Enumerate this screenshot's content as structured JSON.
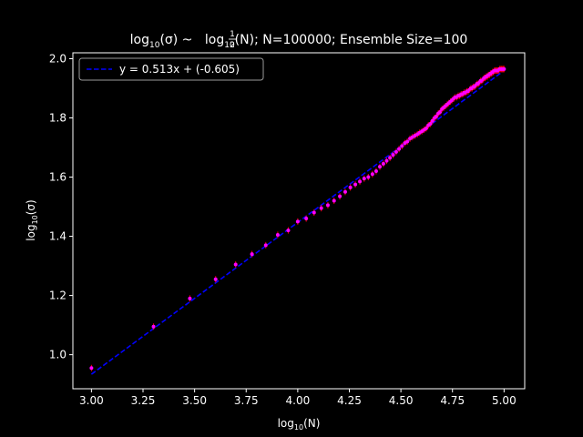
{
  "chart_data": {
    "type": "scatter",
    "title": {
      "p1": "log",
      "p1_sub": "10",
      "p2": "(σ) ~ ",
      "frac_num": "1",
      "frac_den": "2",
      "p3": "log",
      "p3_sub": "10",
      "p4": "(N); N=100000; Ensemble Size=100"
    },
    "xlabel": {
      "base": "log",
      "sub": "10",
      "rest": "(N)"
    },
    "ylabel": {
      "base": "log",
      "sub": "10",
      "rest": "(σ)"
    },
    "xlim": [
      2.91,
      5.1
    ],
    "ylim": [
      0.885,
      2.02
    ],
    "xticks": [
      3.0,
      3.25,
      3.5,
      3.75,
      4.0,
      4.25,
      4.5,
      4.75,
      5.0
    ],
    "xtick_labels": [
      "3.00",
      "3.25",
      "3.50",
      "3.75",
      "4.00",
      "4.25",
      "4.50",
      "4.75",
      "5.00"
    ],
    "yticks": [
      1.0,
      1.2,
      1.4,
      1.6,
      1.8,
      2.0
    ],
    "ytick_labels": [
      "1.0",
      "1.2",
      "1.4",
      "1.6",
      "1.8",
      "2.0"
    ],
    "grid": false,
    "legend_position": "top-left",
    "series": [
      {
        "name": "y = 0.513x + (-0.605)",
        "kind": "dashed-line",
        "color": "#0000ff",
        "slope": 0.513,
        "intercept": -0.605,
        "x_range": [
          3.0,
          5.0
        ]
      },
      {
        "kind": "points-with-errorbars",
        "color": "#ff00ff",
        "points": [
          [
            3.0,
            0.955
          ],
          [
            3.301,
            1.095
          ],
          [
            3.477,
            1.19
          ],
          [
            3.602,
            1.255
          ],
          [
            3.699,
            1.305
          ],
          [
            3.778,
            1.34
          ],
          [
            3.845,
            1.37
          ],
          [
            3.903,
            1.405
          ],
          [
            3.954,
            1.42
          ],
          [
            4.0,
            1.45
          ],
          [
            4.041,
            1.46
          ],
          [
            4.079,
            1.48
          ],
          [
            4.114,
            1.495
          ],
          [
            4.146,
            1.505
          ],
          [
            4.176,
            1.52
          ],
          [
            4.204,
            1.535
          ],
          [
            4.23,
            1.55
          ],
          [
            4.255,
            1.565
          ],
          [
            4.279,
            1.575
          ],
          [
            4.301,
            1.585
          ],
          [
            4.322,
            1.595
          ],
          [
            4.342,
            1.6
          ],
          [
            4.362,
            1.61
          ],
          [
            4.38,
            1.62
          ],
          [
            4.398,
            1.635
          ],
          [
            4.415,
            1.645
          ],
          [
            4.431,
            1.655
          ],
          [
            4.447,
            1.665
          ],
          [
            4.462,
            1.675
          ],
          [
            4.477,
            1.685
          ],
          [
            4.491,
            1.695
          ],
          [
            4.505,
            1.705
          ],
          [
            4.519,
            1.715
          ],
          [
            4.531,
            1.72
          ],
          [
            4.544,
            1.73
          ],
          [
            4.556,
            1.735
          ],
          [
            4.568,
            1.74
          ],
          [
            4.58,
            1.745
          ],
          [
            4.591,
            1.75
          ],
          [
            4.602,
            1.755
          ],
          [
            4.613,
            1.76
          ],
          [
            4.623,
            1.765
          ],
          [
            4.633,
            1.775
          ],
          [
            4.643,
            1.78
          ],
          [
            4.653,
            1.79
          ],
          [
            4.663,
            1.8
          ],
          [
            4.672,
            1.805
          ],
          [
            4.681,
            1.815
          ],
          [
            4.69,
            1.82
          ],
          [
            4.699,
            1.83
          ],
          [
            4.708,
            1.835
          ],
          [
            4.716,
            1.84
          ],
          [
            4.724,
            1.845
          ],
          [
            4.732,
            1.85
          ],
          [
            4.74,
            1.855
          ],
          [
            4.748,
            1.86
          ],
          [
            4.756,
            1.865
          ],
          [
            4.763,
            1.87
          ],
          [
            4.771,
            1.87
          ],
          [
            4.778,
            1.875
          ],
          [
            4.785,
            1.875
          ],
          [
            4.792,
            1.88
          ],
          [
            4.799,
            1.88
          ],
          [
            4.806,
            1.885
          ],
          [
            4.813,
            1.885
          ],
          [
            4.82,
            1.89
          ],
          [
            4.826,
            1.89
          ],
          [
            4.833,
            1.895
          ],
          [
            4.839,
            1.9
          ],
          [
            4.845,
            1.9
          ],
          [
            4.851,
            1.905
          ],
          [
            4.857,
            1.905
          ],
          [
            4.863,
            1.91
          ],
          [
            4.869,
            1.915
          ],
          [
            4.875,
            1.915
          ],
          [
            4.881,
            1.92
          ],
          [
            4.886,
            1.925
          ],
          [
            4.892,
            1.925
          ],
          [
            4.898,
            1.93
          ],
          [
            4.903,
            1.935
          ],
          [
            4.908,
            1.935
          ],
          [
            4.914,
            1.94
          ],
          [
            4.919,
            1.94
          ],
          [
            4.924,
            1.945
          ],
          [
            4.929,
            1.945
          ],
          [
            4.934,
            1.95
          ],
          [
            4.94,
            1.95
          ],
          [
            4.944,
            1.955
          ],
          [
            4.949,
            1.955
          ],
          [
            4.954,
            1.96
          ],
          [
            4.959,
            1.96
          ],
          [
            4.964,
            1.96
          ],
          [
            4.968,
            1.96
          ],
          [
            4.973,
            1.96
          ],
          [
            4.978,
            1.965
          ],
          [
            4.982,
            1.965
          ],
          [
            4.987,
            1.965
          ],
          [
            4.991,
            1.965
          ],
          [
            4.996,
            1.965
          ],
          [
            5.0,
            1.965
          ]
        ]
      }
    ]
  }
}
